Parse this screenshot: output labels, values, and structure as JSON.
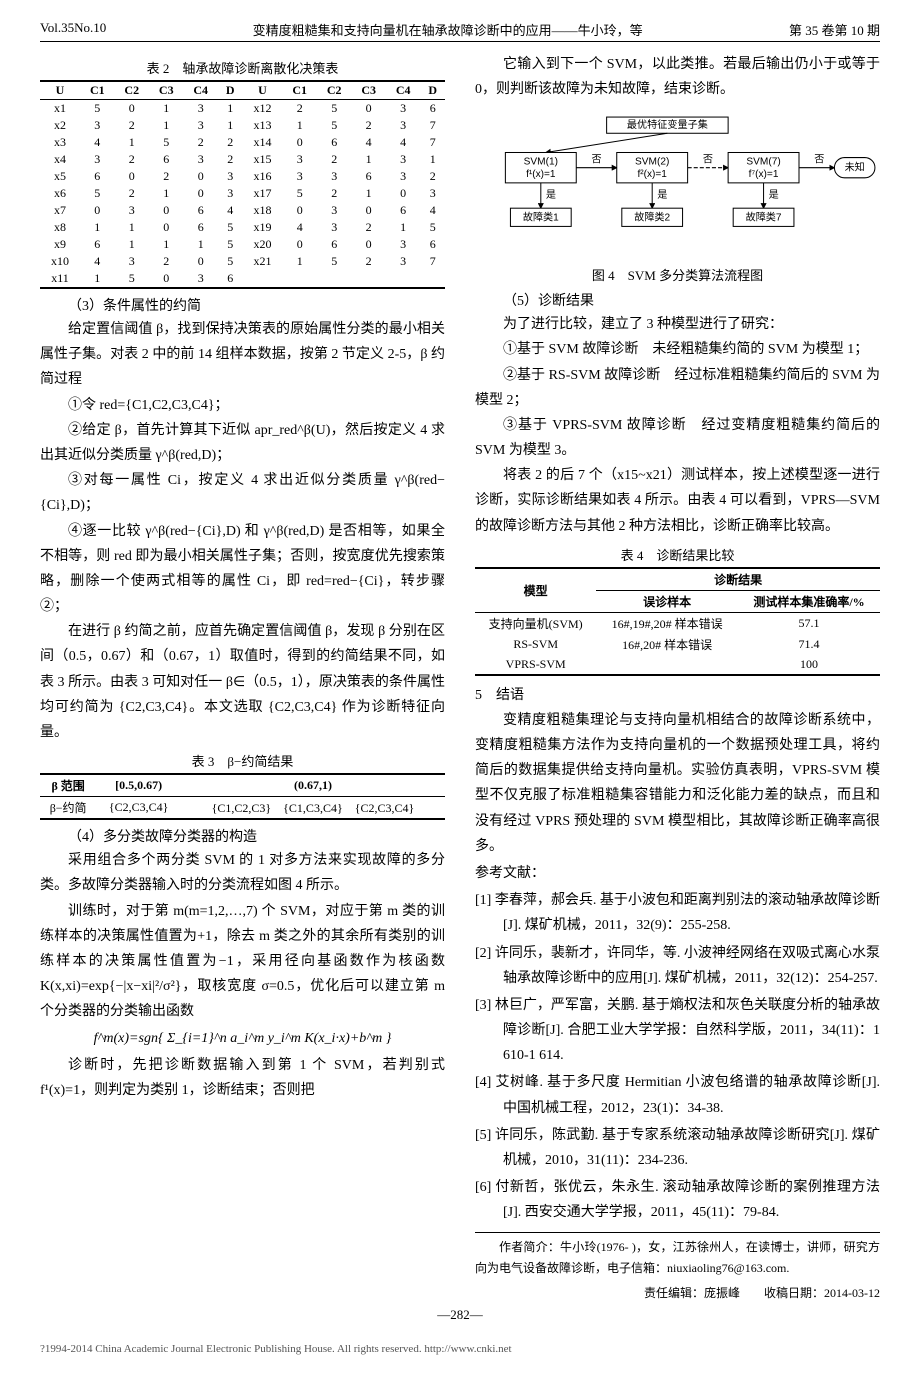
{
  "header": {
    "left": "Vol.35No.10",
    "center": "变精度粗糙集和支持向量机在轴承故障诊断中的应用——牛小玲，等",
    "right": "第 35 卷第 10 期"
  },
  "t2": {
    "caption": "表 2　轴承故障诊断离散化决策表",
    "heads": [
      "U",
      "C1",
      "C2",
      "C3",
      "C4",
      "D",
      "U",
      "C1",
      "C2",
      "C3",
      "C4",
      "D"
    ],
    "rows": [
      [
        "x1",
        "5",
        "0",
        "1",
        "3",
        "1",
        "x12",
        "2",
        "5",
        "0",
        "3",
        "6"
      ],
      [
        "x2",
        "3",
        "2",
        "1",
        "3",
        "1",
        "x13",
        "1",
        "5",
        "2",
        "3",
        "7"
      ],
      [
        "x3",
        "4",
        "1",
        "5",
        "2",
        "2",
        "x14",
        "0",
        "6",
        "4",
        "4",
        "7"
      ],
      [
        "x4",
        "3",
        "2",
        "6",
        "3",
        "2",
        "x15",
        "3",
        "2",
        "1",
        "3",
        "1"
      ],
      [
        "x5",
        "6",
        "0",
        "2",
        "0",
        "3",
        "x16",
        "3",
        "3",
        "6",
        "3",
        "2"
      ],
      [
        "x6",
        "5",
        "2",
        "1",
        "0",
        "3",
        "x17",
        "5",
        "2",
        "1",
        "0",
        "3"
      ],
      [
        "x7",
        "0",
        "3",
        "0",
        "6",
        "4",
        "x18",
        "0",
        "3",
        "0",
        "6",
        "4"
      ],
      [
        "x8",
        "1",
        "1",
        "0",
        "6",
        "5",
        "x19",
        "4",
        "3",
        "2",
        "1",
        "5"
      ],
      [
        "x9",
        "6",
        "1",
        "1",
        "1",
        "5",
        "x20",
        "0",
        "6",
        "0",
        "3",
        "6"
      ],
      [
        "x10",
        "4",
        "3",
        "2",
        "0",
        "5",
        "x21",
        "1",
        "5",
        "2",
        "3",
        "7"
      ],
      [
        "x11",
        "1",
        "5",
        "0",
        "3",
        "6",
        "",
        "",
        "",
        "",
        "",
        ""
      ]
    ]
  },
  "l": {
    "s31": "（3）条件属性的约简",
    "p1": "给定置信阈值 β，找到保持决策表的原始属性分类的最小相关属性子集。对表 2 中的前 14 组样本数据，按第 2 节定义 2-5，β 约简过程",
    "p2": "①令 red={C1,C2,C3,C4}；",
    "p3": "②给定 β，首先计算其下近似 apr_red^β(U)，然后按定义 4 求出其近似分类质量 γ^β(red,D)；",
    "p4": "③对每一属性 Ci，按定义 4 求出近似分类质量 γ^β(red−{Ci},D)；",
    "p5": "④逐一比较 γ^β(red−{Ci},D) 和 γ^β(red,D) 是否相等，如果全不相等，则 red 即为最小相关属性子集；否则，按宽度优先搜索策略，删除一个使两式相等的属性 Ci，即 red=red−{Ci}，转步骤②；",
    "p6": "在进行 β 约简之前，应首先确定置信阈值 β，发现 β 分别在区间（0.5，0.67）和（0.67，1）取值时，得到的约简结果不同，如表 3 所示。由表 3 可知对任一 β∈（0.5，1），原决策表的条件属性均可约简为 {C2,C3,C4}。本文选取 {C2,C3,C4} 作为诊断特征向量。",
    "s4": "（4）多分类故障分类器的构造",
    "p7": "采用组合多个两分类 SVM 的 1 对多方法来实现故障的多分类。多故障分类器输入时的分类流程如图 4 所示。",
    "p8": "训练时，对于第 m(m=1,2,…,7) 个 SVM，对应于第 m 类的训练样本的决策属性值置为+1，除去 m 类之外的其余所有类别的训练样本的决策属性值置为−1，采用径向基函数作为核函数 K(x,xi)=exp{−|x−xi|²/σ²}，取核宽度 σ=0.5，优化后可以建立第 m 个分类器的分类输出函数",
    "f1": "f^m(x)=sgn{ Σ_{i=1}^n a_i^m y_i^m K(x_i·x)+b^m }",
    "p9": "诊断时，先把诊断数据输入到第 1 个 SVM，若判别式 f¹(x)=1，则判定为类别 1，诊断结束；否则把"
  },
  "t3": {
    "caption": "表 3　β−约简结果",
    "h": [
      "β 范围",
      "[0.5,0.67)",
      "(0.67,1)"
    ],
    "r": [
      "β−约简",
      "{C2,C3,C4}",
      "{C1,C2,C3}　{C1,C3,C4}　{C2,C3,C4}"
    ]
  },
  "r": {
    "p1": "它输入到下一个 SVM，以此类推。若最后输出仍小于或等于 0，则判断该故障为未知故障，结束诊断。",
    "figcap": "图 4　SVM 多分类算法流程图",
    "s5": "（5）诊断结果",
    "p2": "为了进行比较，建立了 3 种模型进行了研究：",
    "p3": "①基于 SVM 故障诊断　未经粗糙集约简的 SVM 为模型 1；",
    "p4": "②基于 RS-SVM 故障诊断　经过标准粗糙集约简后的 SVM 为模型 2；",
    "p5": "③基于 VPRS-SVM 故障诊断　经过变精度粗糙集约简后的 SVM 为模型 3。",
    "p6": "将表 2 的后 7 个（x15~x21）测试样本，按上述模型逐一进行诊断，实际诊断结果如表 4 所示。由表 4 可以看到，VPRS—SVM 的故障诊断方法与其他 2 种方法相比，诊断正确率比较高。",
    "h5": "5　结语",
    "p7": "变精度粗糙集理论与支持向量机相结合的故障诊断系统中，变精度粗糙集方法作为支持向量机的一个数据预处理工具，将约简后的数据集提供给支持向量机。实验仿真表明，VPRS-SVM 模型不仅克服了标准粗糙集容错能力和泛化能力差的缺点，而且和没有经过 VPRS 预处理的 SVM 模型相比，其故障诊断正确率高很多。",
    "refh": "参考文献：",
    "refs": [
      "[1] 李春萍，郝会兵. 基于小波包和距离判别法的滚动轴承故障诊断[J]. 煤矿机械，2011，32(9)：255-258.",
      "[2] 许同乐，裴新才，许同华，等. 小波神经网络在双吸式离心水泵轴承故障诊断中的应用[J]. 煤矿机械，2011，32(12)：254-257.",
      "[3] 林巨广，严军富，关鹏. 基于熵权法和灰色关联度分析的轴承故障诊断[J]. 合肥工业大学学报：自然科学版，2011，34(11)：1 610-1 614.",
      "[4] 艾树峰. 基于多尺度 Hermitian 小波包络谱的轴承故障诊断[J]. 中国机械工程，2012，23(1)：34-38.",
      "[5] 许同乐，陈武勤. 基于专家系统滚动轴承故障诊断研究[J]. 煤矿机械，2010，31(11)：234-236.",
      "[6] 付新哲，张优云，朱永生. 滚动轴承故障诊断的案例推理方法[J]. 西安交通大学学报，2011，45(11)：79-84."
    ],
    "author": "作者简介：牛小玲(1976- )，女，江苏徐州人，在读博士，讲师，研究方向为电气设备故障诊断，电子信箱：niuxiaoling76@163.com.",
    "editor": "责任编辑：庞振峰　　收稿日期：2014-03-12"
  },
  "t4": {
    "caption": "表 4　诊断结果比较",
    "head1": "模型",
    "head2": "诊断结果",
    "sub1": "误诊样本",
    "sub2": "测试样本集准确率/%",
    "rows": [
      [
        "支持向量机(SVM)",
        "16#,19#,20# 样本错误",
        "57.1"
      ],
      [
        "RS-SVM",
        "16#,20# 样本错误",
        "71.4"
      ],
      [
        "VPRS-SVM",
        "",
        "100"
      ]
    ]
  },
  "svm": {
    "top": "最优特征变量子集",
    "b1a": "SVM(1)",
    "b1b": "f¹(x)=1",
    "b2a": "SVM(2)",
    "b2b": "f²(x)=1",
    "b3a": "SVM(7)",
    "b3b": "f⁷(x)=1",
    "no": "否",
    "yes": "是",
    "unk": "未知",
    "f1": "故障类1",
    "f2": "故障类2",
    "f7": "故障类7"
  },
  "pg": "—282—",
  "foot": "?1994-2014 China Academic Journal Electronic Publishing House. All rights reserved.    http://www.cnki.net"
}
